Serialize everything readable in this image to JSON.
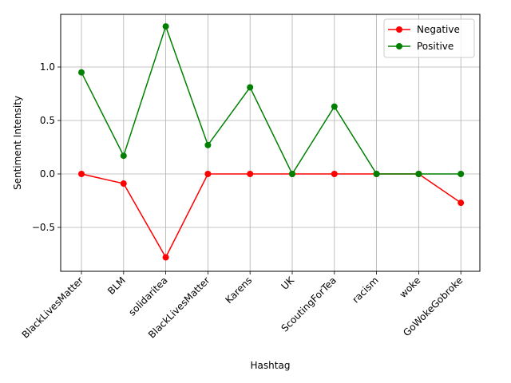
{
  "chart_data": {
    "type": "line",
    "xlabel": "Hashtag",
    "ylabel": "Sentiment Intensity",
    "categories": [
      "BlackLivesMatter",
      "BLM",
      "solidaritea",
      "BlackLivesMatter",
      "Karens",
      "UK",
      "ScoutingForTea",
      "racism",
      "woke",
      "GoWokeGobroke"
    ],
    "series": [
      {
        "name": "Negative",
        "color": "#ff0000",
        "values": [
          0.0,
          -0.09,
          -0.78,
          0.0,
          0.0,
          0.0,
          0.0,
          0.0,
          0.0,
          -0.27
        ]
      },
      {
        "name": "Positive",
        "color": "#008000",
        "values": [
          0.95,
          0.17,
          1.38,
          0.27,
          0.81,
          0.0,
          0.63,
          0.0,
          0.0,
          0.0
        ]
      }
    ],
    "ylim": [
      -0.9,
      1.49
    ],
    "yticks": [
      -0.5,
      0.0,
      0.5,
      1.0
    ],
    "ytick_labels": [
      "−0.5",
      "0.0",
      "0.5",
      "1.0"
    ],
    "x_tick_rotation": 45,
    "grid": true,
    "legend_position": "top-right"
  }
}
